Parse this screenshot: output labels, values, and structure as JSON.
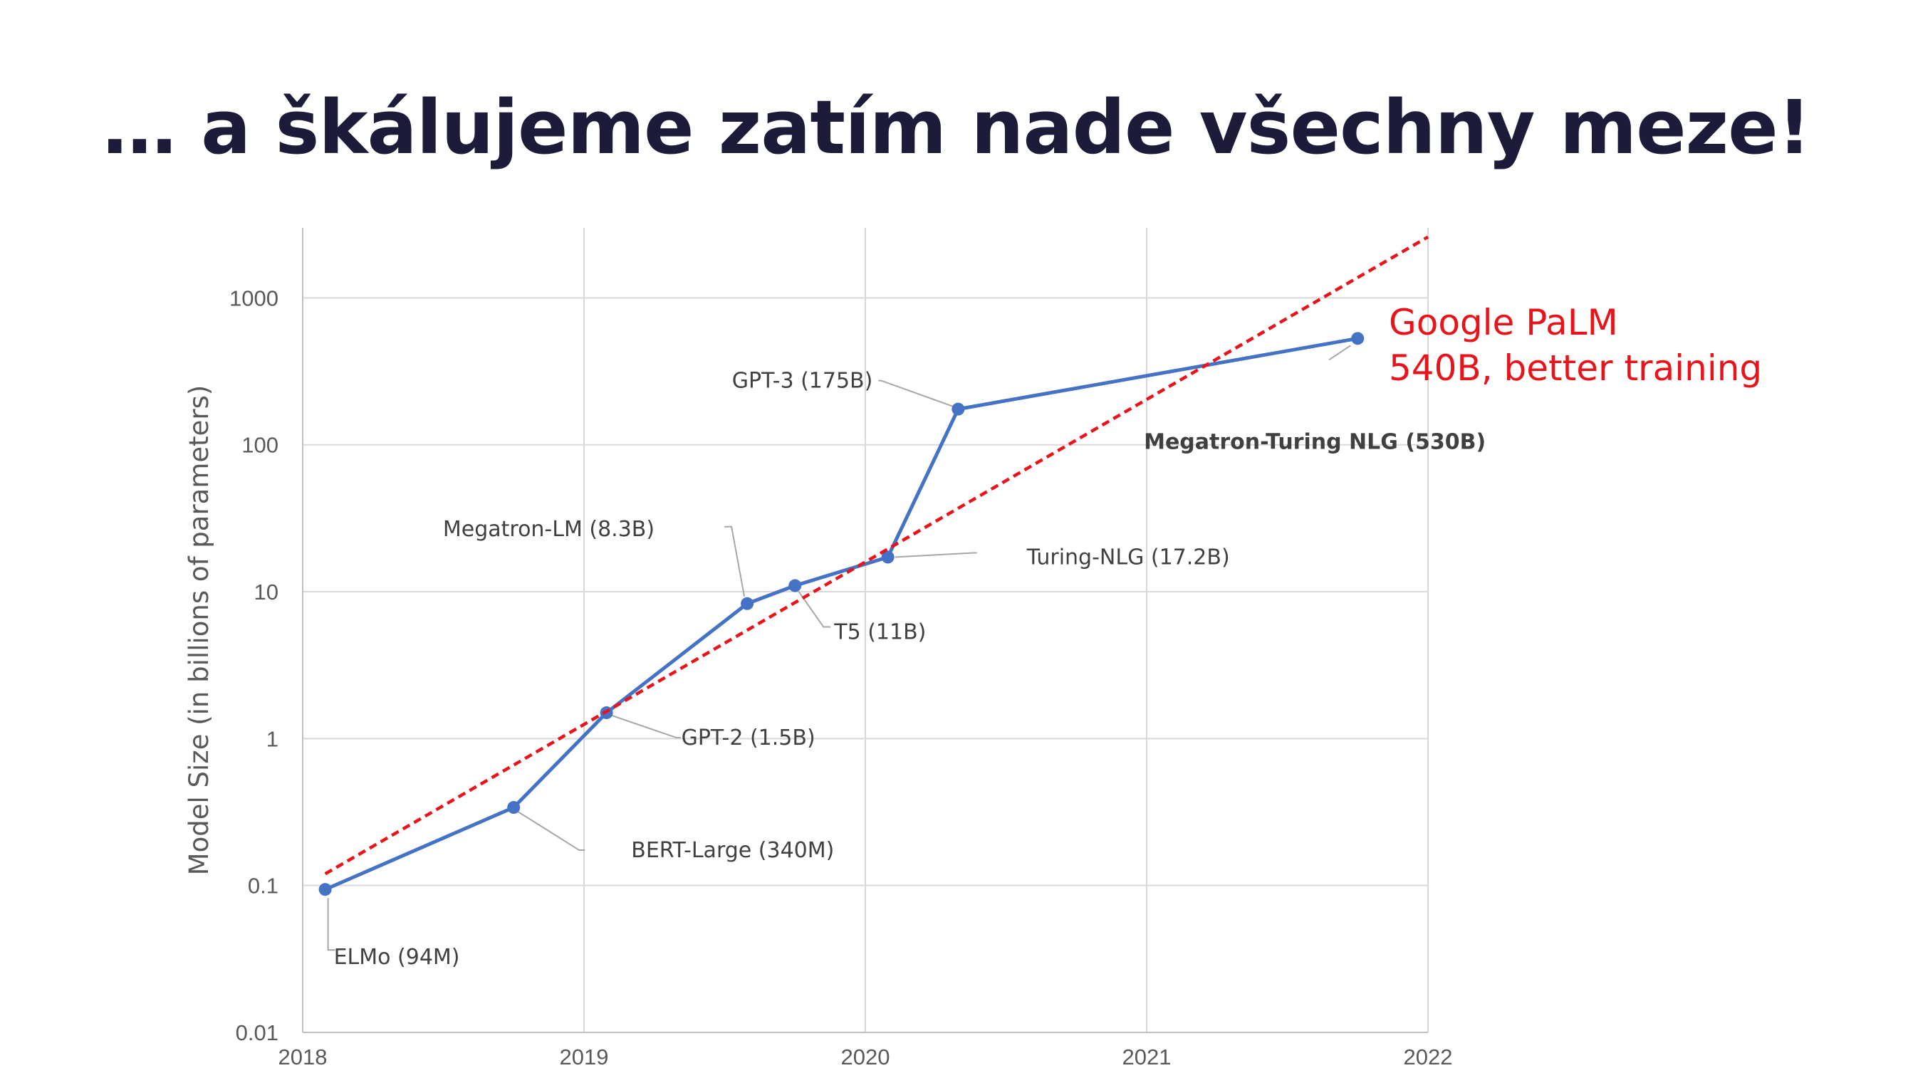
{
  "slide": {
    "title": "… a škálujeme zatím nade všechny meze!"
  },
  "chart_data": {
    "type": "line",
    "ylabel": "Model Size (in billions of parameters)",
    "xlabel": "",
    "y_scale": "log",
    "ylim": [
      0.01,
      3000
    ],
    "xlim": [
      2018,
      2022
    ],
    "x_ticks": [
      "2018",
      "2019",
      "2020",
      "2021",
      "2022"
    ],
    "y_ticks": [
      "0.01",
      "0.1",
      "1",
      "10",
      "100",
      "1000"
    ],
    "grid": true,
    "series": [
      {
        "type": "line",
        "color": "#4472c4",
        "points": [
          {
            "x": 2018.08,
            "y": 0.094
          },
          {
            "x": 2018.75,
            "y": 0.34
          },
          {
            "x": 2019.08,
            "y": 1.5
          },
          {
            "x": 2019.58,
            "y": 8.3
          },
          {
            "x": 2019.75,
            "y": 11
          },
          {
            "x": 2020.08,
            "y": 17.2
          },
          {
            "x": 2020.33,
            "y": 175
          },
          {
            "x": 2021.75,
            "y": 530
          }
        ]
      },
      {
        "type": "trend",
        "style": "dashed",
        "color": "#e8141c",
        "points": [
          {
            "x": 2018.08,
            "y": 0.12
          },
          {
            "x": 2022.0,
            "y": 2600
          }
        ]
      }
    ],
    "annotations": [
      {
        "text": "ELMo (94M)",
        "bold": false,
        "point": 0
      },
      {
        "text": "BERT-Large (340M)",
        "bold": false,
        "point": 1
      },
      {
        "text": "GPT-2 (1.5B)",
        "bold": false,
        "point": 2
      },
      {
        "text": "Megatron-LM (8.3B)",
        "bold": false,
        "point": 3
      },
      {
        "text": "T5 (11B)",
        "bold": false,
        "point": 4
      },
      {
        "text": "Turing-NLG (17.2B)",
        "bold": false,
        "point": 5
      },
      {
        "text": "GPT-3 (175B)",
        "bold": false,
        "point": 6
      },
      {
        "text": "Megatron-Turing NLG (530B)",
        "bold": true,
        "point": 7
      }
    ],
    "highlight": {
      "lines": [
        "Google PaLM",
        "540B, better training"
      ],
      "color": "#e8141c"
    }
  }
}
